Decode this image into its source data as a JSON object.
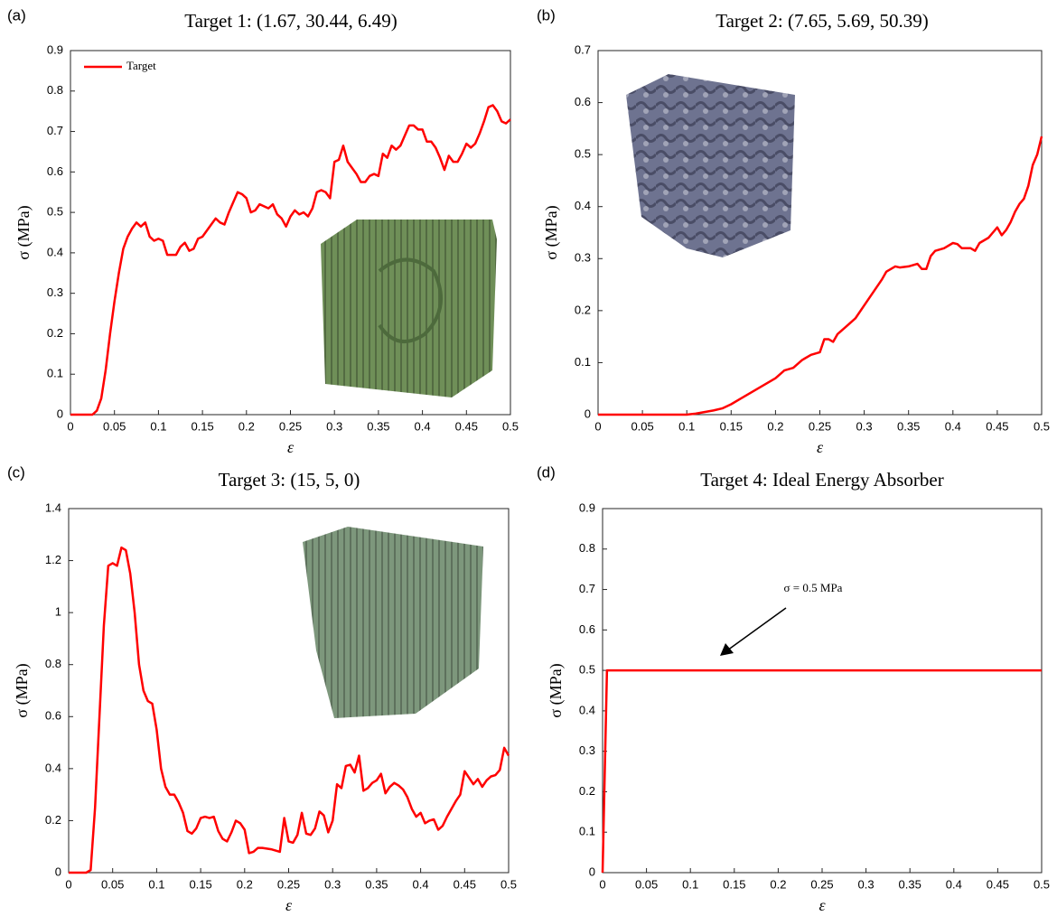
{
  "chart_data": [
    {
      "type": "line",
      "panel": "(a)",
      "title": "Target 1: (1.67, 30.44, 6.49)",
      "xlabel": "ε",
      "ylabel": "σ (MPa)",
      "legend": "upper left",
      "x": [
        0,
        0.025,
        0.03,
        0.035,
        0.04,
        0.045,
        0.05,
        0.055,
        0.06,
        0.065,
        0.07,
        0.075,
        0.08,
        0.085,
        0.09,
        0.095,
        0.1,
        0.105,
        0.11,
        0.12,
        0.125,
        0.13,
        0.135,
        0.14,
        0.145,
        0.15,
        0.155,
        0.16,
        0.165,
        0.17,
        0.175,
        0.18,
        0.185,
        0.19,
        0.195,
        0.2,
        0.205,
        0.21,
        0.215,
        0.22,
        0.225,
        0.23,
        0.235,
        0.24,
        0.245,
        0.25,
        0.255,
        0.26,
        0.265,
        0.27,
        0.275,
        0.28,
        0.285,
        0.29,
        0.295,
        0.3,
        0.305,
        0.31,
        0.315,
        0.32,
        0.325,
        0.33,
        0.335,
        0.34,
        0.345,
        0.35,
        0.355,
        0.36,
        0.365,
        0.37,
        0.375,
        0.38,
        0.385,
        0.39,
        0.395,
        0.4,
        0.405,
        0.41,
        0.415,
        0.42,
        0.425,
        0.43,
        0.435,
        0.44,
        0.445,
        0.45,
        0.455,
        0.46,
        0.465,
        0.47,
        0.475,
        0.48,
        0.485,
        0.49,
        0.495,
        0.5
      ],
      "series": [
        {
          "name": "Target",
          "color": "#ff0000",
          "values": [
            0,
            0,
            0.01,
            0.04,
            0.11,
            0.2,
            0.28,
            0.35,
            0.41,
            0.44,
            0.46,
            0.475,
            0.465,
            0.475,
            0.44,
            0.43,
            0.435,
            0.43,
            0.395,
            0.395,
            0.415,
            0.425,
            0.405,
            0.41,
            0.435,
            0.44,
            0.455,
            0.47,
            0.485,
            0.475,
            0.47,
            0.5,
            0.525,
            0.55,
            0.545,
            0.535,
            0.5,
            0.505,
            0.52,
            0.515,
            0.51,
            0.52,
            0.495,
            0.485,
            0.465,
            0.49,
            0.505,
            0.495,
            0.5,
            0.49,
            0.51,
            0.55,
            0.555,
            0.55,
            0.535,
            0.625,
            0.63,
            0.665,
            0.625,
            0.61,
            0.595,
            0.575,
            0.575,
            0.59,
            0.595,
            0.59,
            0.645,
            0.635,
            0.665,
            0.655,
            0.665,
            0.69,
            0.715,
            0.715,
            0.705,
            0.705,
            0.675,
            0.675,
            0.66,
            0.635,
            0.605,
            0.64,
            0.625,
            0.625,
            0.645,
            0.67,
            0.66,
            0.67,
            0.695,
            0.725,
            0.76,
            0.765,
            0.75,
            0.725,
            0.72,
            0.73
          ]
        }
      ],
      "xlim": [
        0,
        0.5
      ],
      "xticks": [
        0,
        0.05,
        0.1,
        0.15,
        0.2,
        0.25,
        0.3,
        0.35,
        0.4,
        0.45,
        0.5
      ],
      "ylim": [
        0,
        0.9
      ],
      "yticks": [
        0,
        0.1,
        0.2,
        0.3,
        0.4,
        0.5,
        0.6,
        0.7,
        0.8,
        0.9
      ]
    },
    {
      "type": "line",
      "panel": "(b)",
      "title": "Target 2: (7.65, 5.69, 50.39)",
      "xlabel": "ε",
      "ylabel": "σ (MPa)",
      "x": [
        0,
        0.1,
        0.11,
        0.12,
        0.13,
        0.14,
        0.15,
        0.16,
        0.17,
        0.18,
        0.19,
        0.2,
        0.21,
        0.22,
        0.23,
        0.24,
        0.25,
        0.255,
        0.26,
        0.265,
        0.27,
        0.28,
        0.29,
        0.3,
        0.31,
        0.32,
        0.325,
        0.33,
        0.335,
        0.34,
        0.35,
        0.36,
        0.365,
        0.37,
        0.375,
        0.38,
        0.39,
        0.4,
        0.405,
        0.41,
        0.42,
        0.425,
        0.43,
        0.44,
        0.445,
        0.45,
        0.455,
        0.46,
        0.465,
        0.47,
        0.475,
        0.48,
        0.485,
        0.49,
        0.495,
        0.5
      ],
      "series": [
        {
          "color": "#ff0000",
          "values": [
            0,
            0,
            0.002,
            0.005,
            0.008,
            0.012,
            0.02,
            0.03,
            0.04,
            0.05,
            0.06,
            0.07,
            0.085,
            0.09,
            0.105,
            0.115,
            0.12,
            0.145,
            0.145,
            0.14,
            0.155,
            0.17,
            0.185,
            0.21,
            0.235,
            0.26,
            0.275,
            0.28,
            0.285,
            0.283,
            0.285,
            0.29,
            0.28,
            0.28,
            0.305,
            0.315,
            0.32,
            0.33,
            0.328,
            0.32,
            0.32,
            0.315,
            0.33,
            0.34,
            0.35,
            0.36,
            0.345,
            0.355,
            0.37,
            0.39,
            0.405,
            0.415,
            0.44,
            0.48,
            0.5,
            0.535
          ]
        }
      ],
      "xlim": [
        0,
        0.5
      ],
      "xticks": [
        0,
        0.05,
        0.1,
        0.15,
        0.2,
        0.25,
        0.3,
        0.35,
        0.4,
        0.45,
        0.5
      ],
      "ylim": [
        0,
        0.7
      ],
      "yticks": [
        0,
        0.1,
        0.2,
        0.3,
        0.4,
        0.5,
        0.6,
        0.7
      ]
    },
    {
      "type": "line",
      "panel": "(c)",
      "title": "Target 3: (15, 5, 0)",
      "xlabel": "ε",
      "ylabel": "σ (MPa)",
      "x": [
        0,
        0.02,
        0.025,
        0.03,
        0.035,
        0.04,
        0.045,
        0.05,
        0.055,
        0.06,
        0.065,
        0.07,
        0.075,
        0.08,
        0.085,
        0.09,
        0.095,
        0.1,
        0.105,
        0.11,
        0.115,
        0.12,
        0.125,
        0.13,
        0.135,
        0.14,
        0.145,
        0.15,
        0.155,
        0.16,
        0.165,
        0.17,
        0.175,
        0.18,
        0.185,
        0.19,
        0.195,
        0.2,
        0.205,
        0.21,
        0.215,
        0.22,
        0.23,
        0.24,
        0.245,
        0.25,
        0.255,
        0.26,
        0.265,
        0.27,
        0.275,
        0.28,
        0.285,
        0.29,
        0.295,
        0.3,
        0.305,
        0.31,
        0.315,
        0.32,
        0.325,
        0.33,
        0.335,
        0.34,
        0.345,
        0.35,
        0.355,
        0.36,
        0.365,
        0.37,
        0.375,
        0.38,
        0.385,
        0.39,
        0.395,
        0.4,
        0.405,
        0.41,
        0.415,
        0.42,
        0.425,
        0.43,
        0.435,
        0.44,
        0.445,
        0.45,
        0.455,
        0.46,
        0.465,
        0.47,
        0.475,
        0.48,
        0.485,
        0.49,
        0.495,
        0.5
      ],
      "series": [
        {
          "color": "#ff0000",
          "values": [
            0,
            0,
            0.01,
            0.25,
            0.6,
            0.95,
            1.18,
            1.19,
            1.18,
            1.25,
            1.24,
            1.15,
            1.0,
            0.8,
            0.7,
            0.66,
            0.65,
            0.55,
            0.4,
            0.33,
            0.3,
            0.3,
            0.27,
            0.23,
            0.16,
            0.15,
            0.17,
            0.21,
            0.215,
            0.21,
            0.215,
            0.16,
            0.13,
            0.12,
            0.155,
            0.2,
            0.19,
            0.165,
            0.075,
            0.08,
            0.095,
            0.095,
            0.09,
            0.08,
            0.21,
            0.12,
            0.115,
            0.145,
            0.23,
            0.15,
            0.145,
            0.17,
            0.235,
            0.22,
            0.155,
            0.2,
            0.34,
            0.325,
            0.41,
            0.415,
            0.385,
            0.45,
            0.315,
            0.325,
            0.345,
            0.355,
            0.38,
            0.305,
            0.33,
            0.345,
            0.335,
            0.32,
            0.29,
            0.245,
            0.215,
            0.23,
            0.19,
            0.2,
            0.205,
            0.165,
            0.18,
            0.215,
            0.245,
            0.275,
            0.3,
            0.39,
            0.365,
            0.34,
            0.36,
            0.33,
            0.355,
            0.37,
            0.375,
            0.395,
            0.48,
            0.45
          ]
        }
      ],
      "xlim": [
        0,
        0.5
      ],
      "xticks": [
        0,
        0.05,
        0.1,
        0.15,
        0.2,
        0.25,
        0.3,
        0.35,
        0.4,
        0.45,
        0.5
      ],
      "ylim": [
        0,
        1.4
      ],
      "yticks": [
        0,
        0.2,
        0.4,
        0.6,
        0.8,
        1,
        1.2,
        1.4
      ]
    },
    {
      "type": "line",
      "panel": "(d)",
      "title": "Target 4: Ideal Energy Absorber",
      "xlabel": "ε",
      "ylabel": "σ (MPa)",
      "annotation": "σ = 0.5 MPa",
      "x": [
        0,
        0.005,
        0.5
      ],
      "series": [
        {
          "color": "#ff0000",
          "values": [
            0,
            0.5,
            0.5
          ]
        }
      ],
      "xlim": [
        0,
        0.5
      ],
      "xticks": [
        0,
        0.05,
        0.1,
        0.15,
        0.2,
        0.25,
        0.3,
        0.35,
        0.4,
        0.45,
        0.5
      ],
      "ylim": [
        0,
        0.9
      ],
      "yticks": [
        0,
        0.1,
        0.2,
        0.3,
        0.4,
        0.5,
        0.6,
        0.7,
        0.8,
        0.9
      ]
    }
  ]
}
